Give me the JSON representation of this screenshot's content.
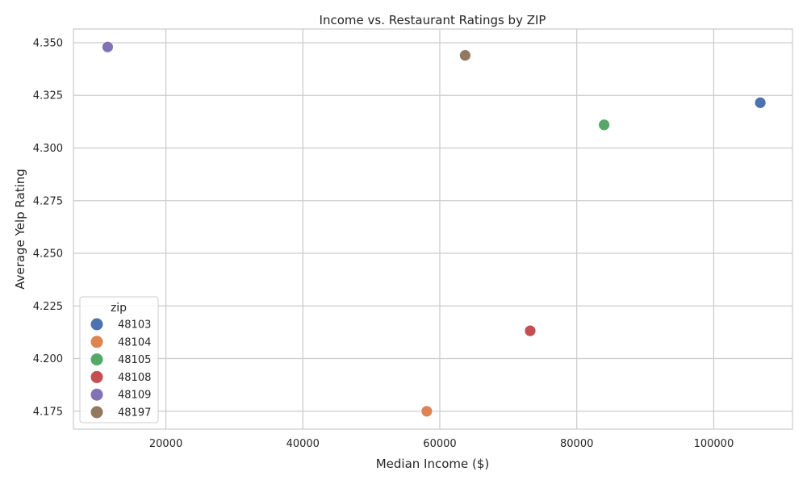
{
  "chart_data": {
    "type": "scatter",
    "title": "Income vs. Restaurant Ratings by ZIP",
    "xlabel": "Median Income ($)",
    "ylabel": "Average Yelp Rating",
    "xlim": [
      6500,
      111500
    ],
    "ylim": [
      4.1665,
      4.3565
    ],
    "xticks": [
      20000,
      40000,
      60000,
      80000,
      100000
    ],
    "yticks": [
      4.175,
      4.2,
      4.225,
      4.25,
      4.275,
      4.3,
      4.325,
      4.35
    ],
    "x_tick_labels": [
      "20000",
      "40000",
      "60000",
      "80000",
      "100000"
    ],
    "y_tick_labels": [
      "4.175",
      "4.200",
      "4.225",
      "4.250",
      "4.275",
      "4.300",
      "4.325",
      "4.350"
    ],
    "grid": true,
    "legend": {
      "title": "zip",
      "placement": "lower-left"
    },
    "series": [
      {
        "name": "48103",
        "color": "#4c72b0",
        "points": [
          {
            "x": 106800,
            "y": 4.3215
          }
        ]
      },
      {
        "name": "48104",
        "color": "#dd8452",
        "points": [
          {
            "x": 58100,
            "y": 4.175
          }
        ]
      },
      {
        "name": "48105",
        "color": "#55a868",
        "points": [
          {
            "x": 84000,
            "y": 4.311
          }
        ]
      },
      {
        "name": "48108",
        "color": "#c44e52",
        "points": [
          {
            "x": 73200,
            "y": 4.2132
          }
        ]
      },
      {
        "name": "48109",
        "color": "#8172b3",
        "points": [
          {
            "x": 11500,
            "y": 4.348
          }
        ]
      },
      {
        "name": "48197",
        "color": "#937860",
        "points": [
          {
            "x": 63700,
            "y": 4.344
          }
        ]
      }
    ]
  }
}
